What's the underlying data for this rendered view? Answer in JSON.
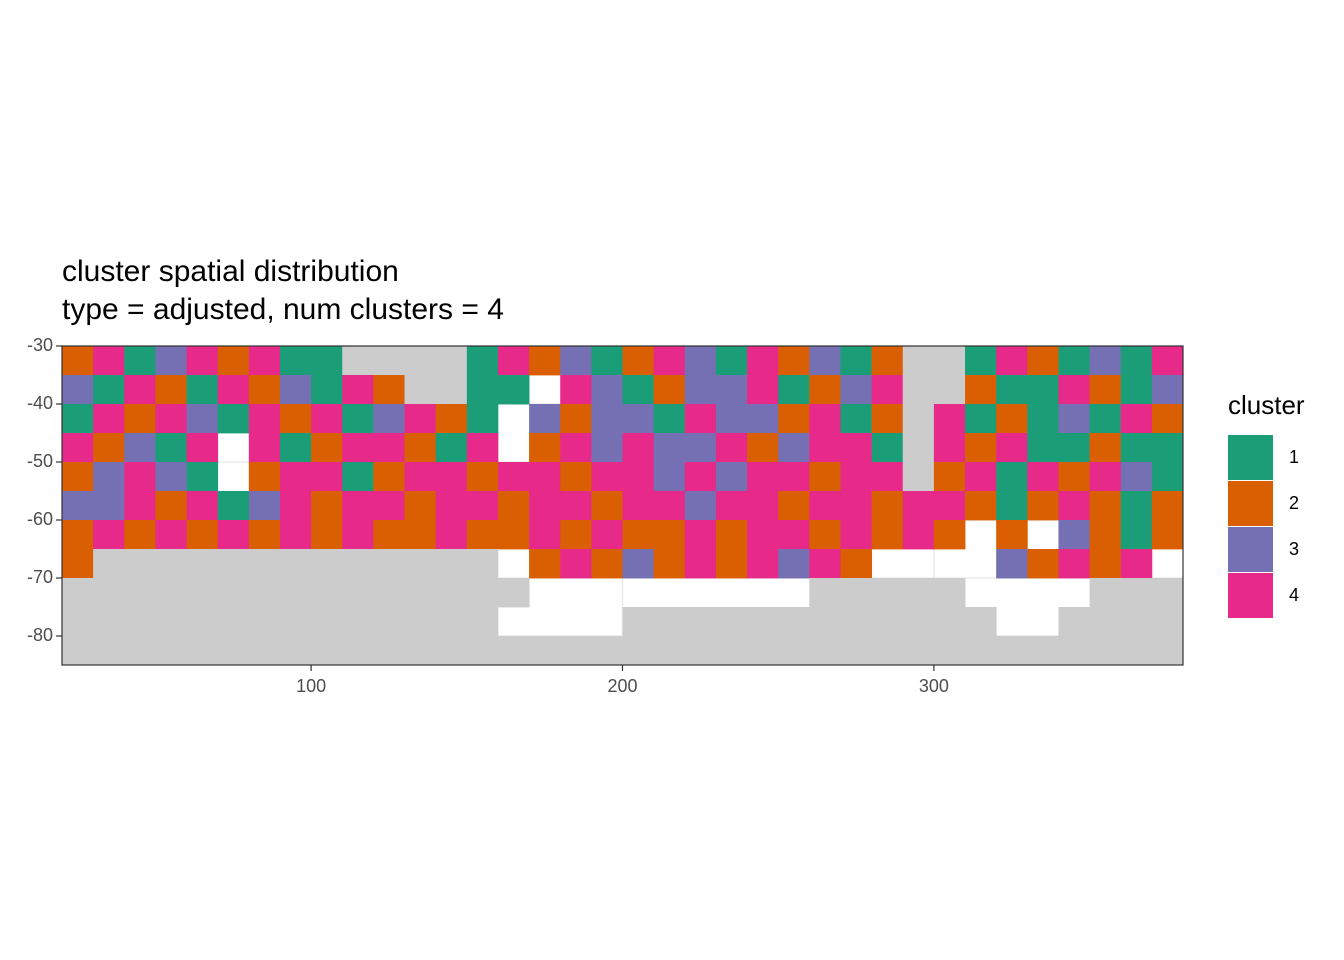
{
  "chart_data": {
    "type": "heatmap",
    "title": "cluster spatial distribution",
    "subtitle": "type = adjusted, num clusters = 4",
    "x": [
      25,
      35,
      45,
      55,
      65,
      75,
      85,
      95,
      105,
      115,
      125,
      135,
      145,
      155,
      165,
      175,
      185,
      195,
      205,
      215,
      225,
      235,
      245,
      255,
      265,
      275,
      285,
      295,
      305,
      315,
      325,
      335,
      345,
      355,
      365,
      375
    ],
    "y": [
      -32.5,
      -37.5,
      -42.5,
      -47.5,
      -52.5,
      -57.5,
      -62.5,
      -67.5,
      -72.5,
      -77.5,
      -82.5
    ],
    "z": [
      [
        2,
        4,
        1,
        3,
        4,
        2,
        4,
        1,
        1,
        0,
        0,
        0,
        0,
        1,
        4,
        2,
        3,
        1,
        2,
        4,
        3,
        1,
        4,
        2,
        3,
        1,
        2,
        0,
        0,
        1,
        4,
        2,
        1,
        3,
        1,
        4
      ],
      [
        3,
        1,
        4,
        2,
        1,
        4,
        2,
        3,
        1,
        4,
        2,
        0,
        0,
        1,
        1,
        null,
        4,
        3,
        1,
        2,
        3,
        3,
        4,
        1,
        2,
        3,
        4,
        0,
        0,
        2,
        1,
        1,
        4,
        2,
        1,
        3
      ],
      [
        1,
        4,
        2,
        4,
        3,
        1,
        4,
        2,
        4,
        1,
        3,
        4,
        2,
        1,
        null,
        3,
        2,
        3,
        3,
        1,
        4,
        3,
        3,
        2,
        4,
        1,
        2,
        0,
        4,
        1,
        2,
        1,
        3,
        1,
        4,
        2
      ],
      [
        4,
        2,
        3,
        1,
        4,
        null,
        4,
        1,
        2,
        4,
        4,
        2,
        1,
        4,
        null,
        2,
        4,
        3,
        4,
        3,
        3,
        4,
        2,
        3,
        4,
        4,
        1,
        0,
        4,
        2,
        4,
        1,
        1,
        2,
        1,
        1
      ],
      [
        2,
        3,
        4,
        3,
        1,
        null,
        2,
        4,
        4,
        1,
        2,
        4,
        4,
        2,
        4,
        4,
        2,
        4,
        4,
        3,
        4,
        3,
        4,
        4,
        2,
        4,
        4,
        0,
        2,
        4,
        1,
        4,
        2,
        4,
        3,
        1
      ],
      [
        3,
        3,
        4,
        2,
        4,
        1,
        3,
        4,
        2,
        4,
        4,
        2,
        4,
        4,
        2,
        4,
        4,
        2,
        4,
        4,
        3,
        4,
        4,
        2,
        4,
        4,
        2,
        4,
        4,
        2,
        1,
        2,
        4,
        2,
        1,
        2
      ],
      [
        2,
        4,
        2,
        4,
        2,
        4,
        2,
        4,
        2,
        4,
        2,
        2,
        4,
        2,
        2,
        4,
        2,
        4,
        2,
        2,
        4,
        2,
        4,
        4,
        2,
        4,
        2,
        4,
        2,
        null,
        2,
        null,
        3,
        2,
        1,
        2
      ],
      [
        2,
        0,
        0,
        0,
        0,
        0,
        0,
        0,
        0,
        0,
        0,
        0,
        0,
        0,
        null,
        2,
        4,
        2,
        3,
        2,
        4,
        2,
        4,
        3,
        4,
        2,
        null,
        null,
        null,
        null,
        3,
        2,
        4,
        2,
        4,
        null
      ],
      [
        0,
        0,
        0,
        0,
        0,
        0,
        0,
        0,
        0,
        0,
        0,
        0,
        0,
        0,
        0,
        null,
        null,
        null,
        null,
        null,
        null,
        null,
        null,
        null,
        0,
        0,
        0,
        0,
        0,
        null,
        null,
        null,
        null,
        0,
        0,
        0
      ],
      [
        0,
        0,
        0,
        0,
        0,
        0,
        0,
        0,
        0,
        0,
        0,
        0,
        0,
        0,
        null,
        null,
        null,
        null,
        0,
        0,
        0,
        0,
        0,
        0,
        0,
        0,
        0,
        0,
        0,
        0,
        null,
        null,
        0,
        0,
        0,
        0
      ],
      [
        0,
        0,
        0,
        0,
        0,
        0,
        0,
        0,
        0,
        0,
        0,
        0,
        0,
        0,
        0,
        0,
        0,
        0,
        0,
        0,
        0,
        0,
        0,
        0,
        0,
        0,
        0,
        0,
        0,
        0,
        0,
        0,
        0,
        0,
        0,
        0
      ]
    ],
    "land_color": "#cccccc",
    "xlim": [
      20,
      380
    ],
    "ylim": [
      -85,
      -30
    ],
    "xticks": [
      100,
      200,
      300
    ],
    "yticks": [
      -30,
      -40,
      -50,
      -60,
      -70,
      -80
    ],
    "grid": true,
    "legend": {
      "title": "cluster",
      "position": "right",
      "entries": [
        {
          "label": "1",
          "color": "#1b9e77"
        },
        {
          "label": "2",
          "color": "#d95f02"
        },
        {
          "label": "3",
          "color": "#7570b3"
        },
        {
          "label": "4",
          "color": "#e7298a"
        }
      ]
    }
  }
}
